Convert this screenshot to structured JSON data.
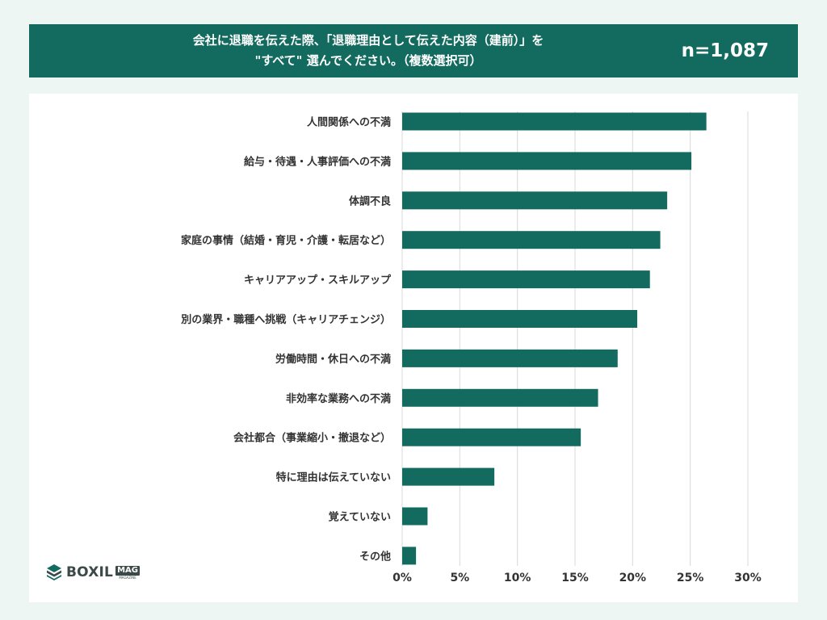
{
  "header": {
    "title_line1": "会社に退職を伝えた際、「退職理由として伝えた内容（建前）」を",
    "title_line2": "\"すべて\" 選んでください。（複数選択可）",
    "sample_size": "n=1,087"
  },
  "logo": {
    "word": "BOXIL",
    "badge": "MAG",
    "badge_sub": "MAGAZINE",
    "icon": "boxil-cube-icon"
  },
  "colors": {
    "bar": "#136b5f",
    "header_bg": "#136b5f",
    "grid": "#d9d9d9",
    "text": "#333333"
  },
  "chart_data": {
    "type": "bar",
    "orientation": "horizontal",
    "categories": [
      "人間関係への不満",
      "給与・待遇・人事評価への不満",
      "体調不良",
      "家庭の事情（結婚・育児・介護・転居など）",
      "キャリアアップ・スキルアップ",
      "別の業界・職種へ挑戦（キャリアチェンジ）",
      "労働時間・休日への不満",
      "非効率な業務への不満",
      "会社都合（事業縮小・撤退など）",
      "特に理由は伝えていない",
      "覚えていない",
      "その他"
    ],
    "values": [
      26.4,
      25.1,
      23.0,
      22.4,
      21.5,
      20.4,
      18.7,
      17.0,
      15.5,
      8.0,
      2.2,
      1.2
    ],
    "unit": "%",
    "xlim": [
      0,
      30
    ],
    "x_ticks": [
      "0%",
      "5%",
      "10%",
      "15%",
      "20%",
      "25%",
      "30%"
    ],
    "grid": true,
    "legend": "none",
    "title": "",
    "xlabel": "",
    "ylabel": ""
  }
}
